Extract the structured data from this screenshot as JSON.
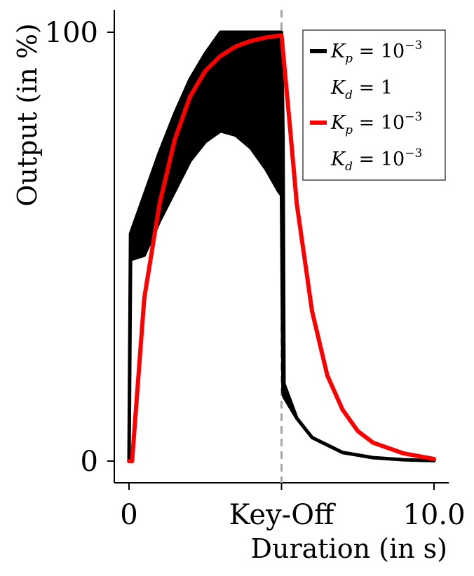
{
  "chart_data": {
    "type": "line",
    "title": "",
    "xlabel": "Duration (in s)",
    "ylabel": "Output (in %)",
    "xlim": [
      0,
      10
    ],
    "ylim": [
      0,
      100
    ],
    "xticks": [
      {
        "value": 0,
        "label": "0"
      },
      {
        "value": 5,
        "label": "Key-Off"
      },
      {
        "value": 10,
        "label": "10.0"
      }
    ],
    "yticks": [
      {
        "value": 0,
        "label": "0"
      },
      {
        "value": 100,
        "label": "100"
      }
    ],
    "key_off": 5,
    "key_off_line_color": "#a6a6a6",
    "grid": false,
    "legend_position": "top-right",
    "series": [
      {
        "name": "K_p = 10^{-3}, K_d = 1",
        "legend_lines": [
          "K_p = 10^{-3}",
          "K_d = 1"
        ],
        "color": "#000000",
        "style": "oscillating band",
        "upper_envelope": [
          [
            0,
            0
          ],
          [
            0.05,
            53
          ],
          [
            0.5,
            62
          ],
          [
            1,
            72
          ],
          [
            1.5,
            81
          ],
          [
            2,
            89
          ],
          [
            2.5,
            95
          ],
          [
            3,
            100
          ],
          [
            4,
            100
          ],
          [
            4.9,
            100
          ],
          [
            5,
            100
          ],
          [
            5.05,
            75
          ],
          [
            5.08,
            18
          ],
          [
            5.5,
            10
          ],
          [
            6,
            5.5
          ],
          [
            7,
            2
          ],
          [
            8,
            0.8
          ],
          [
            9,
            0.3
          ],
          [
            10,
            0.1
          ]
        ],
        "lower_envelope": [
          [
            0,
            0
          ],
          [
            0.05,
            47
          ],
          [
            0.5,
            48
          ],
          [
            1,
            56
          ],
          [
            1.5,
            63
          ],
          [
            2,
            70
          ],
          [
            2.5,
            74.5
          ],
          [
            3,
            77
          ],
          [
            3.5,
            76
          ],
          [
            4,
            73
          ],
          [
            4.5,
            68
          ],
          [
            4.9,
            63
          ],
          [
            5,
            62
          ],
          [
            5.05,
            16
          ],
          [
            5.08,
            15
          ],
          [
            5.5,
            10
          ],
          [
            6,
            5.5
          ],
          [
            7,
            2
          ],
          [
            8,
            0.8
          ],
          [
            9,
            0.3
          ],
          [
            10,
            0.1
          ]
        ]
      },
      {
        "name": "K_p = 10^{-3}, K_d = 10^{-3}",
        "legend_lines": [
          "K_p = 10^{-3}",
          "K_d = 10^{-3}"
        ],
        "color": "#ff0000",
        "style": "line",
        "points": [
          [
            0,
            0
          ],
          [
            0.1,
            0
          ],
          [
            0.5,
            38
          ],
          [
            1,
            60
          ],
          [
            1.5,
            75
          ],
          [
            2,
            85
          ],
          [
            2.5,
            91
          ],
          [
            3,
            94.5
          ],
          [
            3.5,
            96.7
          ],
          [
            4,
            98
          ],
          [
            4.5,
            98.8
          ],
          [
            5,
            99.3
          ],
          [
            5.25,
            80
          ],
          [
            5.5,
            60
          ],
          [
            6,
            35
          ],
          [
            6.5,
            20
          ],
          [
            7,
            12
          ],
          [
            7.5,
            7
          ],
          [
            8,
            4.3
          ],
          [
            9,
            1.8
          ],
          [
            10,
            0.5
          ]
        ]
      }
    ]
  }
}
